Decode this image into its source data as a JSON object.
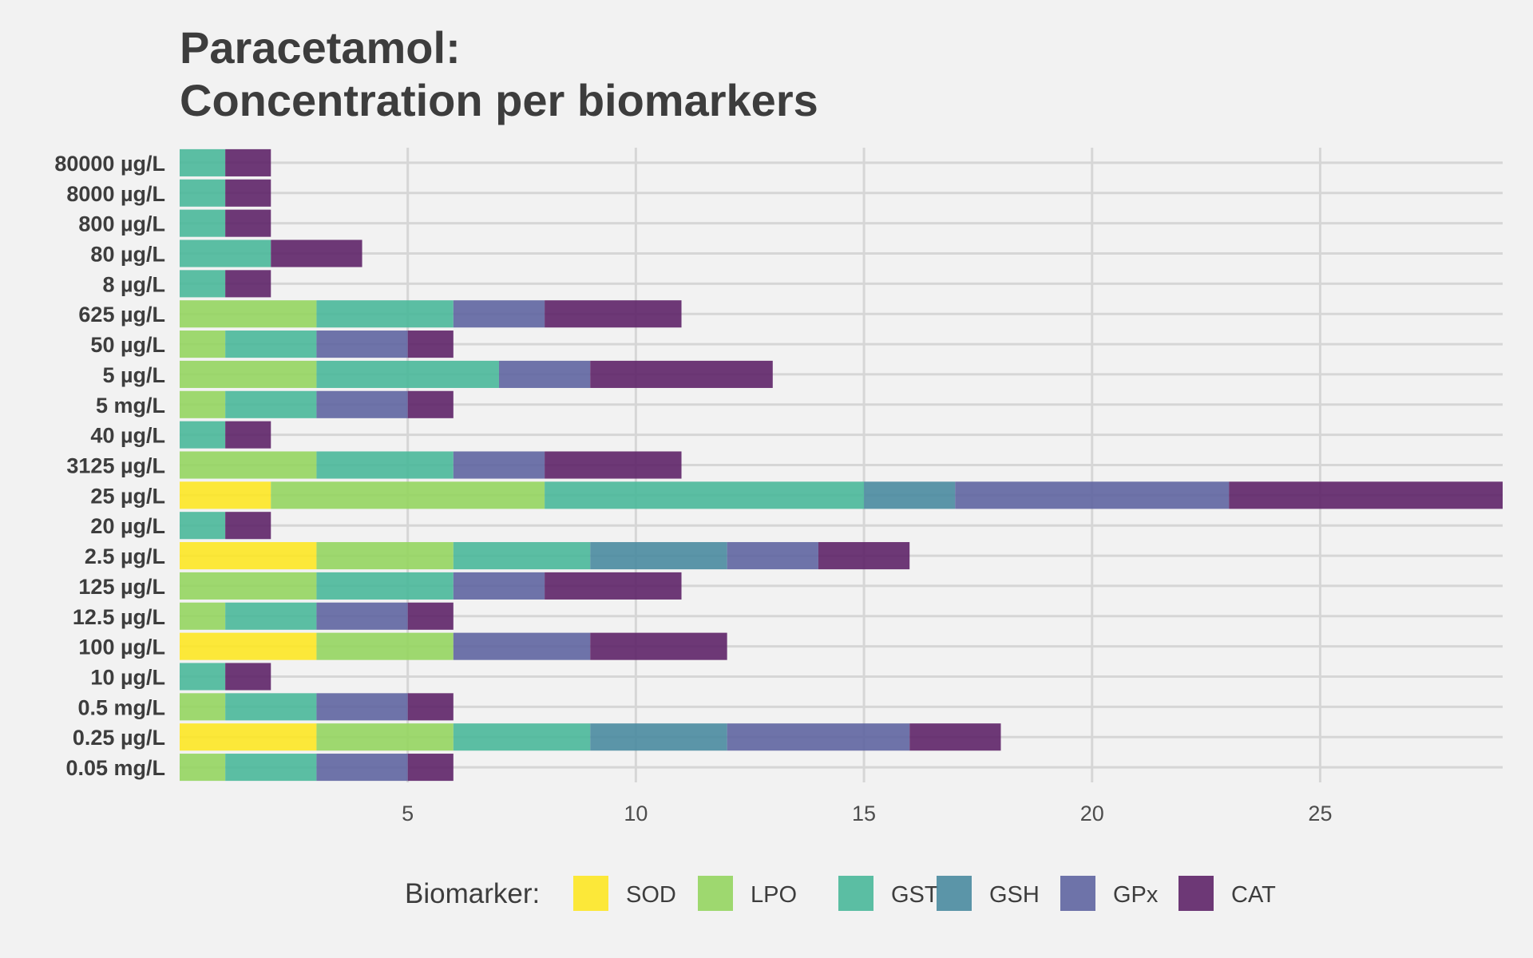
{
  "chart_data": {
    "type": "bar",
    "orientation": "horizontal",
    "stacked": true,
    "title": [
      "Paracetamol:",
      "Concentration per biomarkers"
    ],
    "xlabel": "",
    "ylabel": "",
    "xlim": [
      0,
      29
    ],
    "x_ticks": [
      5,
      10,
      15,
      20,
      25
    ],
    "grid": true,
    "legend_title": "Biomarker:",
    "legend_position": "bottom",
    "categories": [
      "80000 µg/L",
      "8000 µg/L",
      "800 µg/L",
      "80 µg/L",
      "8 µg/L",
      "625 µg/L",
      "50 µg/L",
      "5 µg/L",
      "5 mg/L",
      "40 µg/L",
      "3125 µg/L",
      "25 µg/L",
      "20 µg/L",
      "2.5 µg/L",
      "125 µg/L",
      "12.5 µg/L",
      "100 µg/L",
      "10 µg/L",
      "0.5 mg/L",
      "0.25 µg/L",
      "0.05 mg/L"
    ],
    "series": [
      {
        "name": "SOD",
        "color": "#fde725",
        "values": [
          0,
          0,
          0,
          0,
          0,
          0,
          0,
          0,
          0,
          0,
          0,
          2,
          0,
          3,
          0,
          0,
          3,
          0,
          0,
          3,
          0
        ]
      },
      {
        "name": "LPO",
        "color": "#95d560",
        "values": [
          0,
          0,
          0,
          0,
          0,
          3,
          1,
          3,
          1,
          0,
          3,
          6,
          0,
          3,
          3,
          1,
          3,
          0,
          1,
          3,
          1
        ]
      },
      {
        "name": "GST",
        "color": "#4ab89a",
        "values": [
          1,
          1,
          1,
          2,
          1,
          3,
          2,
          4,
          2,
          1,
          3,
          7,
          1,
          3,
          3,
          2,
          0,
          1,
          2,
          3,
          2
        ]
      },
      {
        "name": "GSH",
        "color": "#4a8ba0",
        "values": [
          0,
          0,
          0,
          0,
          0,
          0,
          0,
          0,
          0,
          0,
          0,
          2,
          0,
          3,
          0,
          0,
          0,
          0,
          0,
          3,
          0
        ]
      },
      {
        "name": "GPx",
        "color": "#5f65a1",
        "values": [
          0,
          0,
          0,
          0,
          0,
          2,
          2,
          2,
          2,
          0,
          2,
          6,
          0,
          2,
          2,
          2,
          3,
          0,
          2,
          4,
          2
        ]
      },
      {
        "name": "CAT",
        "color": "#5e2468",
        "values": [
          1,
          1,
          1,
          2,
          1,
          3,
          1,
          4,
          1,
          1,
          3,
          6,
          1,
          2,
          3,
          1,
          3,
          1,
          1,
          2,
          1
        ]
      }
    ]
  }
}
